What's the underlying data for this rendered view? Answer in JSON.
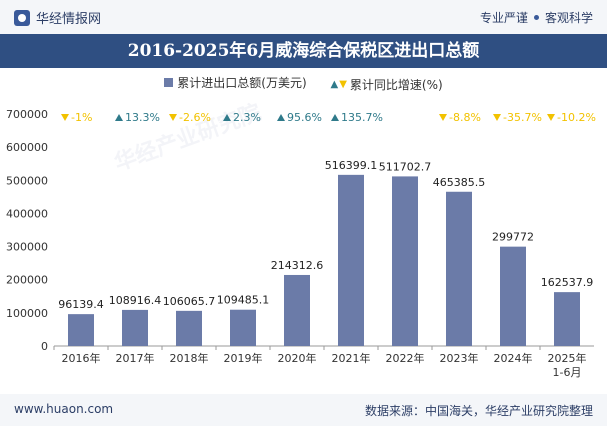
{
  "header": {
    "brand": "华经情报网",
    "slogan_left": "专业严谨",
    "slogan_right": "客观科学"
  },
  "footer": {
    "site": "www.huaon.com",
    "source": "数据来源：中国海关，华经产业研究院整理"
  },
  "watermark": "华经产业研究院",
  "colors": {
    "bar": "#6b7ba8",
    "up": "#2f7a8a",
    "down": "#f2c200",
    "title_bg": "#2f4f82"
  },
  "chart_data": {
    "type": "bar",
    "title": "2016-2025年6月威海综合保税区进出口总额",
    "legend": {
      "bar_label": "累计进出口总额(万美元)",
      "rate_label": "累计同比增速(%)"
    },
    "categories": [
      "2016年",
      "2017年",
      "2018年",
      "2019年",
      "2020年",
      "2021年",
      "2022年",
      "2023年",
      "2024年",
      "2025年"
    ],
    "category_sublabels": [
      "",
      "",
      "",
      "",
      "",
      "",
      "",
      "",
      "",
      "1-6月"
    ],
    "values": [
      96139.4,
      108916.4,
      106065.7,
      109485.1,
      214312.6,
      516399.1,
      511702.7,
      465385.5,
      299772,
      162537.9
    ],
    "value_labels": [
      "96139.4",
      "108916.4",
      "106065.7",
      "109485.1",
      "214312.6",
      "516399.1",
      "511702.7",
      "465385.5",
      "299772",
      "162537.9"
    ],
    "growth": [
      -1,
      13.3,
      -2.6,
      2.3,
      95.6,
      135.7,
      null,
      -8.8,
      -35.7,
      -10.2
    ],
    "growth_labels": [
      "-1%",
      "13.3%",
      "-2.6%",
      "2.3%",
      "95.6%",
      "135.7%",
      "",
      "-8.8%",
      "-35.7%",
      "-10.2%"
    ],
    "ylim": [
      0,
      700000
    ],
    "yticks": [
      0,
      100000,
      200000,
      300000,
      400000,
      500000,
      600000,
      700000
    ],
    "ytick_labels": [
      "0",
      "100000",
      "200000",
      "300000",
      "400000",
      "500000",
      "600000",
      "700000"
    ]
  }
}
